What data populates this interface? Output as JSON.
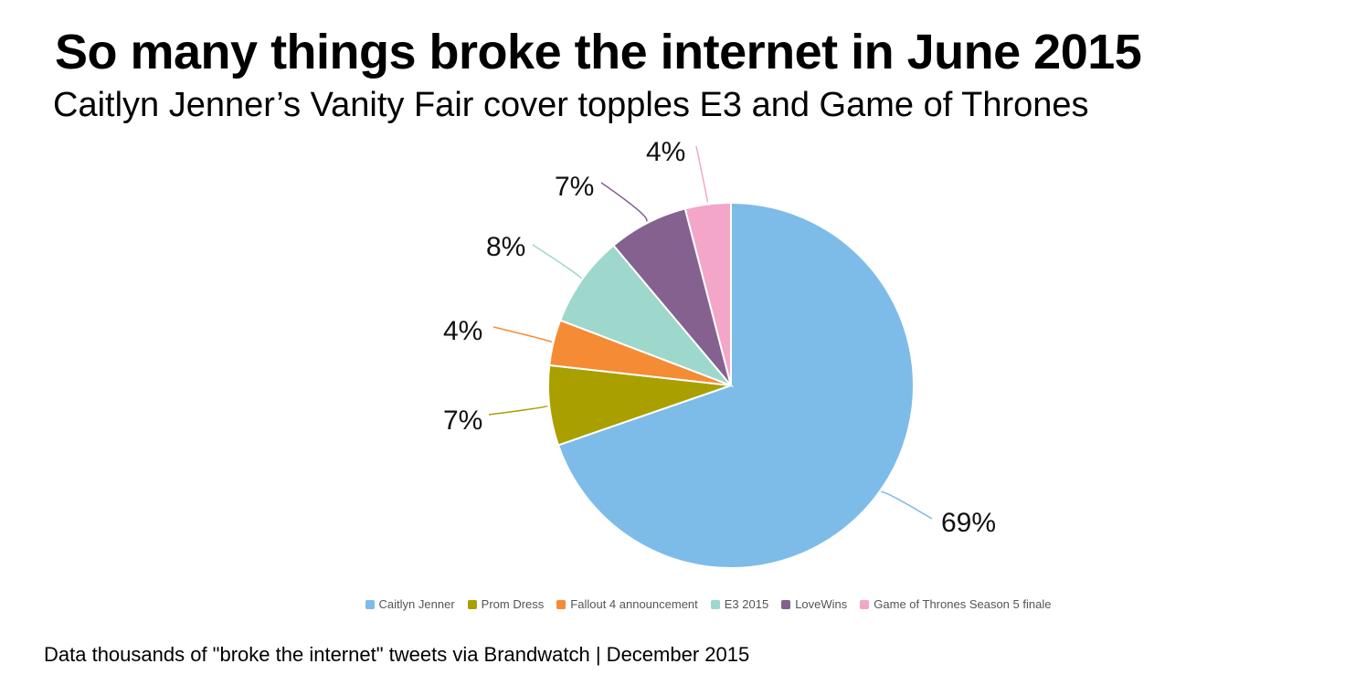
{
  "header": {
    "title": "So many things broke the internet in June 2015",
    "subtitle": "Caitlyn Jenner’s Vanity Fair cover topples E3 and Game of Thrones"
  },
  "footer": {
    "source": "Data thousands of \"broke the internet\" tweets via Brandwatch | December 2015"
  },
  "chart_data": {
    "type": "pie",
    "title": "So many things broke the internet in June 2015",
    "subtitle": "Caitlyn Jenner’s Vanity Fair cover topples E3 and Game of Thrones",
    "legend_position": "bottom",
    "categories": [
      "Caitlyn Jenner",
      "Prom Dress",
      "Fallout 4 announcement",
      "E3 2015",
      "LoveWins",
      "Game of Thrones Season 5 finale"
    ],
    "values": [
      69,
      7,
      4,
      8,
      7,
      4
    ],
    "labels": [
      "69%",
      "7%",
      "4%",
      "8%",
      "7%",
      "4%"
    ],
    "colors": [
      "#7dbce8",
      "#a9a000",
      "#f58b35",
      "#9ed7cb",
      "#84618f",
      "#f4a6c8"
    ]
  }
}
